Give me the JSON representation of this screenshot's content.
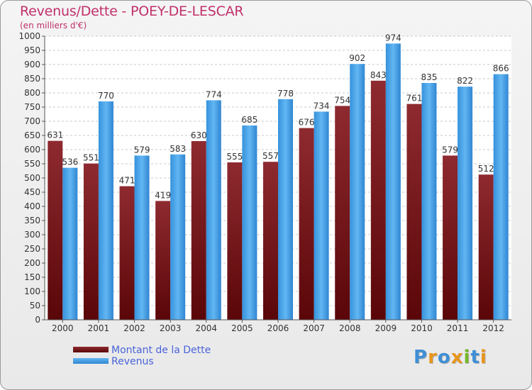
{
  "header": {
    "title": "Revenus/Dette - POEY-DE-LESCAR",
    "subtitle": "(en milliers d'€)"
  },
  "legend": {
    "items": [
      {
        "label": "Montant de la Dette",
        "color": "#6b0f12"
      },
      {
        "label": "Revenus",
        "color": "#3fa0e8"
      }
    ]
  },
  "logo": {
    "text": "Proxiti",
    "letters": [
      {
        "ch": "P",
        "color": "#3f8fd6"
      },
      {
        "ch": "r",
        "color": "#e8961c"
      },
      {
        "ch": "o",
        "color": "#3f8fd6"
      },
      {
        "ch": "x",
        "color": "#e8961c"
      },
      {
        "ch": "i",
        "color": "#76b82a"
      },
      {
        "ch": "t",
        "color": "#3f8fd6"
      },
      {
        "ch": "i",
        "color": "#e8961c"
      }
    ]
  },
  "chart_data": {
    "type": "bar",
    "title": "Revenus/Dette - POEY-DE-LESCAR",
    "subtitle": "(en milliers d'€)",
    "categories": [
      "2000",
      "2001",
      "2002",
      "2003",
      "2004",
      "2005",
      "2006",
      "2007",
      "2008",
      "2009",
      "2010",
      "2011",
      "2012"
    ],
    "series": [
      {
        "name": "Montant de la Dette",
        "color": "#6b0f12",
        "values": [
          631,
          551,
          471,
          419,
          630,
          555,
          557,
          676,
          754,
          843,
          761,
          579,
          512
        ]
      },
      {
        "name": "Revenus",
        "color": "#3fa0e8",
        "values": [
          536,
          770,
          579,
          583,
          774,
          685,
          778,
          734,
          902,
          974,
          835,
          822,
          866
        ]
      }
    ],
    "ylim": [
      0,
      1000
    ],
    "ytick_step": 50,
    "grid": true,
    "legend_position": "bottom-left"
  }
}
